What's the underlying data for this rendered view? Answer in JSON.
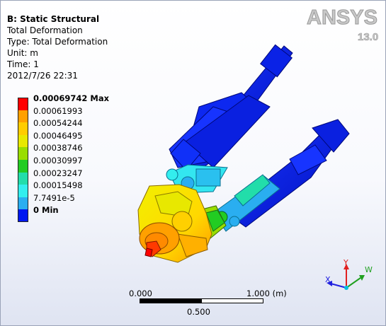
{
  "info": {
    "title": "B: Static Structural",
    "result": "Total Deformation",
    "type": "Type: Total Deformation",
    "unit": "Unit: m",
    "time": "Time: 1",
    "date": "2012/7/26 22:31"
  },
  "logo": {
    "brand": "ANSYS",
    "version": "13.0"
  },
  "legend": [
    {
      "label": "0.00069742 Max",
      "color": "#ff0000",
      "bold": true
    },
    {
      "label": "0.00061993",
      "color": "#ffa000",
      "bold": false
    },
    {
      "label": "0.00054244",
      "color": "#ffcc00",
      "bold": false
    },
    {
      "label": "0.00046495",
      "color": "#e8e800",
      "bold": false
    },
    {
      "label": "0.00038746",
      "color": "#99dd00",
      "bold": false
    },
    {
      "label": "0.00030997",
      "color": "#22cc22",
      "bold": false
    },
    {
      "label": "0.00023247",
      "color": "#22ddaa",
      "bold": false
    },
    {
      "label": "0.00015498",
      "color": "#33eeee",
      "bold": false
    },
    {
      "label": "7.7491e-5",
      "color": "#2aaef0",
      "bold": false
    },
    {
      "label": "0 Min",
      "color": "#0018f0",
      "bold": true
    }
  ],
  "scale": {
    "left": "0.000",
    "right": "1.000 (m)",
    "mid": "0.500"
  },
  "triad": {
    "x": "X",
    "y": "Y",
    "z": "W"
  },
  "colors": {
    "min": "#0018f0",
    "max": "#ff0000",
    "background_bottom": "#dfe4f2"
  }
}
